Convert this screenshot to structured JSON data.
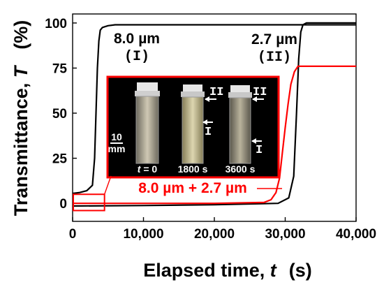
{
  "chart_data": {
    "type": "line",
    "xlabel": {
      "name": "Elapsed time, ",
      "symbol": "t",
      "unit": "(s)"
    },
    "ylabel": {
      "name": "Transmittance, ",
      "symbol": "T",
      "unit": "(%)"
    },
    "xlim": [
      0,
      40000
    ],
    "ylim": [
      -10,
      105
    ],
    "x_ticks": [
      0,
      10000,
      20000,
      30000,
      40000
    ],
    "x_tick_labels": [
      "0",
      "10,000",
      "20,000",
      "30,000",
      "40,000"
    ],
    "y_ticks": [
      0,
      25,
      50,
      75,
      100
    ],
    "y_tick_labels": [
      "0",
      "25",
      "50",
      "75",
      "100"
    ],
    "grid": false,
    "series": [
      {
        "name": "8.0 µm (I)",
        "color": "#000000",
        "x": [
          0,
          1000,
          2000,
          2800,
          3100,
          3300,
          3500,
          3700,
          3900,
          4200,
          4600,
          5000,
          6000,
          40000
        ],
        "y": [
          5.5,
          6,
          7,
          10,
          25,
          50,
          75,
          90,
          96,
          97.5,
          98,
          98.5,
          99,
          99
        ]
      },
      {
        "name": "2.7 µm (II)",
        "color": "#000000",
        "x": [
          0,
          10000,
          20000,
          29000,
          30500,
          31200,
          31600,
          31900,
          32200,
          32500,
          33000,
          40000
        ],
        "y": [
          -1.5,
          -1.2,
          -0.8,
          0,
          3,
          15,
          50,
          80,
          95,
          99,
          100,
          100
        ]
      },
      {
        "name": "8.0 µm + 2.7 µm",
        "color": "#ff0000",
        "x": [
          0,
          10000,
          20000,
          27000,
          28000,
          28700,
          29200,
          29600,
          30000,
          30400,
          30800,
          31300,
          31800,
          32500,
          40000
        ],
        "y": [
          0,
          0,
          0,
          0.5,
          2,
          6,
          14,
          28,
          42,
          55,
          66,
          73,
          76,
          76,
          76
        ]
      }
    ],
    "annotations": [
      {
        "id": "ann-8",
        "number": "8.0",
        "unit": "µm",
        "roman": "(I)"
      },
      {
        "id": "ann-27",
        "number": "2.7",
        "unit": "µm",
        "roman": "(II)"
      },
      {
        "id": "ann-mix",
        "text": "8.0 µm + 2.7 µm",
        "color": "#ff0000"
      }
    ],
    "zoom_box": {
      "x": [
        0,
        4500
      ],
      "y": [
        -4,
        5
      ],
      "color": "#ff0000"
    },
    "inset": {
      "border_color": "#ff0000",
      "scale_bar": [
        "10",
        "mm"
      ],
      "time_labels": [
        {
          "symbol": "t",
          "text": " = 0"
        },
        {
          "text": "1800 s"
        },
        {
          "text": "3600 s"
        }
      ],
      "markers": [
        {
          "vial": 1,
          "label": "II",
          "level": "upper"
        },
        {
          "vial": 1,
          "label": "I",
          "level": "middle"
        },
        {
          "vial": 2,
          "label": "II",
          "level": "upper"
        },
        {
          "vial": 2,
          "label": "I",
          "level": "lower"
        }
      ]
    }
  }
}
